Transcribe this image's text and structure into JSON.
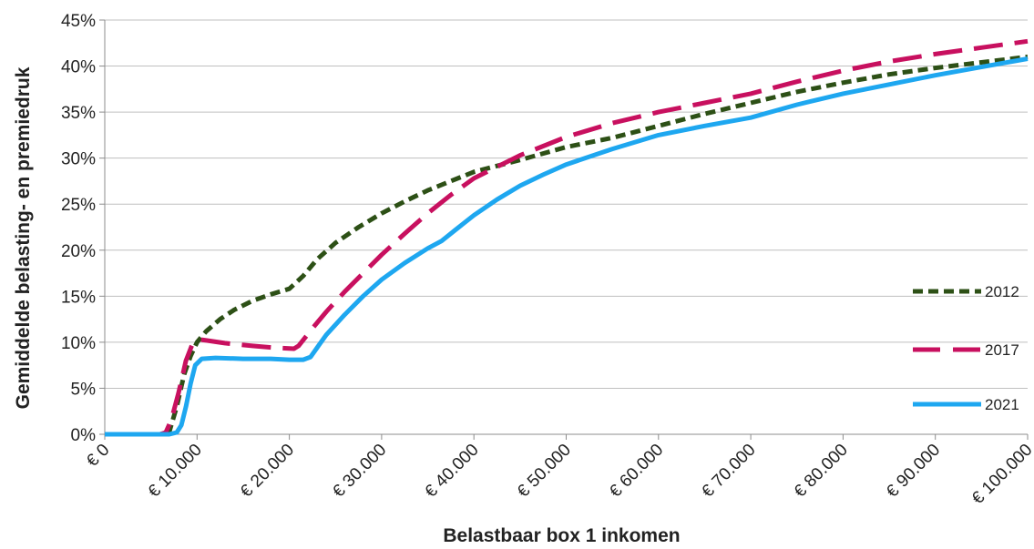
{
  "chart_data": {
    "type": "line",
    "title": "",
    "xlabel": "Belastbaar box 1 inkomen",
    "ylabel": "Gemiddelde belasting- en premiedruk",
    "xlim": [
      0,
      100000
    ],
    "ylim": [
      0,
      45
    ],
    "grid": "horizontal",
    "legend_position": "right",
    "x_ticks": [
      0,
      10000,
      20000,
      30000,
      40000,
      50000,
      60000,
      70000,
      80000,
      90000,
      100000
    ],
    "x_tick_labels": [
      "€ 0",
      "€ 10.000",
      "€ 20.000",
      "€ 30.000",
      "€ 40.000",
      "€ 50.000",
      "€ 60.000",
      "€ 70.000",
      "€ 80.000",
      "€ 90.000",
      "€ 100.000"
    ],
    "y_ticks": [
      0,
      5,
      10,
      15,
      20,
      25,
      30,
      35,
      40,
      45
    ],
    "y_tick_labels": [
      "0%",
      "5%",
      "10%",
      "15%",
      "20%",
      "25%",
      "30%",
      "35%",
      "40%",
      "45%"
    ],
    "series": [
      {
        "name": "2012",
        "color": "#2d5016",
        "dash": "short-dash",
        "x": [
          0,
          6000,
          7000,
          7800,
          8600,
          9300,
          10000,
          11000,
          12500,
          14000,
          16000,
          18000,
          20000,
          21500,
          23000,
          25000,
          27500,
          30000,
          32500,
          35000,
          37500,
          40000,
          45000,
          50000,
          55000,
          60000,
          65000,
          70000,
          75000,
          80000,
          85000,
          90000,
          95000,
          100000
        ],
        "y": [
          0,
          0,
          0.3,
          3.0,
          6.5,
          8.5,
          10.0,
          11.2,
          12.5,
          13.5,
          14.5,
          15.2,
          15.8,
          17.2,
          19.0,
          20.8,
          22.5,
          24.0,
          25.3,
          26.5,
          27.5,
          28.5,
          29.8,
          31.2,
          32.2,
          33.5,
          34.8,
          36.0,
          37.2,
          38.2,
          39.1,
          39.8,
          40.4,
          41.0
        ]
      },
      {
        "name": "2017",
        "color": "#c8105f",
        "dash": "long-dash",
        "x": [
          0,
          6000,
          6600,
          7200,
          8000,
          8800,
          9500,
          10300,
          11000,
          13000,
          16000,
          18500,
          20500,
          21000,
          22500,
          24000,
          26000,
          28000,
          30000,
          32500,
          35000,
          37500,
          40000,
          45000,
          50000,
          55000,
          60000,
          65000,
          70000,
          75000,
          80000,
          85000,
          90000,
          95000,
          100000
        ],
        "y": [
          0,
          0,
          0.2,
          1.5,
          4.5,
          8.0,
          9.8,
          10.3,
          10.2,
          9.9,
          9.6,
          9.4,
          9.3,
          9.6,
          11.5,
          13.3,
          15.5,
          17.5,
          19.5,
          21.8,
          24.0,
          26.0,
          27.8,
          30.3,
          32.3,
          33.8,
          35.0,
          36.0,
          37.0,
          38.3,
          39.5,
          40.5,
          41.3,
          42.0,
          42.7
        ]
      },
      {
        "name": "2021",
        "color": "#1ea7f0",
        "dash": "solid",
        "x": [
          0,
          7000,
          7800,
          8300,
          8800,
          9300,
          9800,
          10500,
          12000,
          15000,
          18000,
          20000,
          21500,
          22300,
          23000,
          24000,
          26000,
          28000,
          30000,
          32500,
          35000,
          36500,
          38000,
          40000,
          42500,
          45000,
          47500,
          50000,
          55000,
          60000,
          65000,
          70000,
          75000,
          80000,
          85000,
          90000,
          95000,
          100000
        ],
        "y": [
          0,
          0,
          0.2,
          1.0,
          3.0,
          5.5,
          7.5,
          8.2,
          8.3,
          8.2,
          8.2,
          8.1,
          8.1,
          8.4,
          9.4,
          10.8,
          13.0,
          15.0,
          16.8,
          18.6,
          20.2,
          21.0,
          22.2,
          23.8,
          25.5,
          27.0,
          28.2,
          29.3,
          31.0,
          32.5,
          33.5,
          34.4,
          35.8,
          37.0,
          38.0,
          39.0,
          39.9,
          40.8
        ]
      }
    ]
  }
}
